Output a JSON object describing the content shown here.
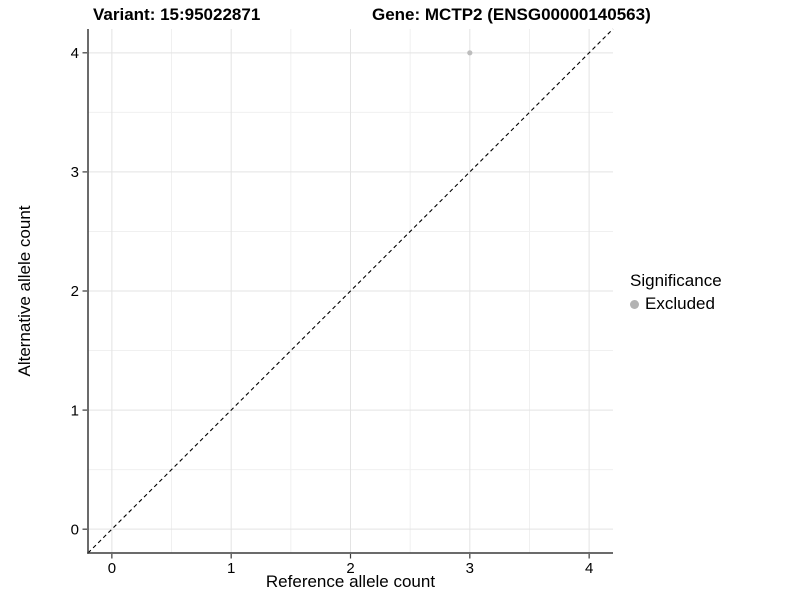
{
  "chart_data": {
    "type": "scatter",
    "title_left": "Variant: 15:95022871",
    "title_right": "Gene: MCTP2 (ENSG00000140563)",
    "xlabel": "Reference allele count",
    "ylabel": "Alternative allele count",
    "xlim": [
      -0.2,
      4.2
    ],
    "ylim": [
      -0.2,
      4.2
    ],
    "xticks": [
      0,
      1,
      2,
      3,
      4
    ],
    "yticks": [
      0,
      1,
      2,
      3,
      4
    ],
    "xminor": [
      0.5,
      1.5,
      2.5,
      3.5
    ],
    "yminor": [
      0.5,
      1.5,
      2.5,
      3.5
    ],
    "grid": "major+minor",
    "points": [
      {
        "x": 3,
        "y": 4,
        "series": "Excluded"
      }
    ],
    "identity_line": {
      "slope": 1,
      "intercept": 0,
      "style": "dashed",
      "color": "#000000"
    },
    "legend": {
      "title": "Significance",
      "position": "right",
      "entries": [
        {
          "label": "Excluded",
          "color": "#b3b3b3"
        }
      ]
    },
    "colors": {
      "point": "#bdbdbd",
      "grid_major": "#e3e3e3",
      "grid_minor": "#f0f0f0",
      "axis_line": "#3a3a3a",
      "tick_mark": "#3a3a3a",
      "text": "#000000"
    }
  }
}
